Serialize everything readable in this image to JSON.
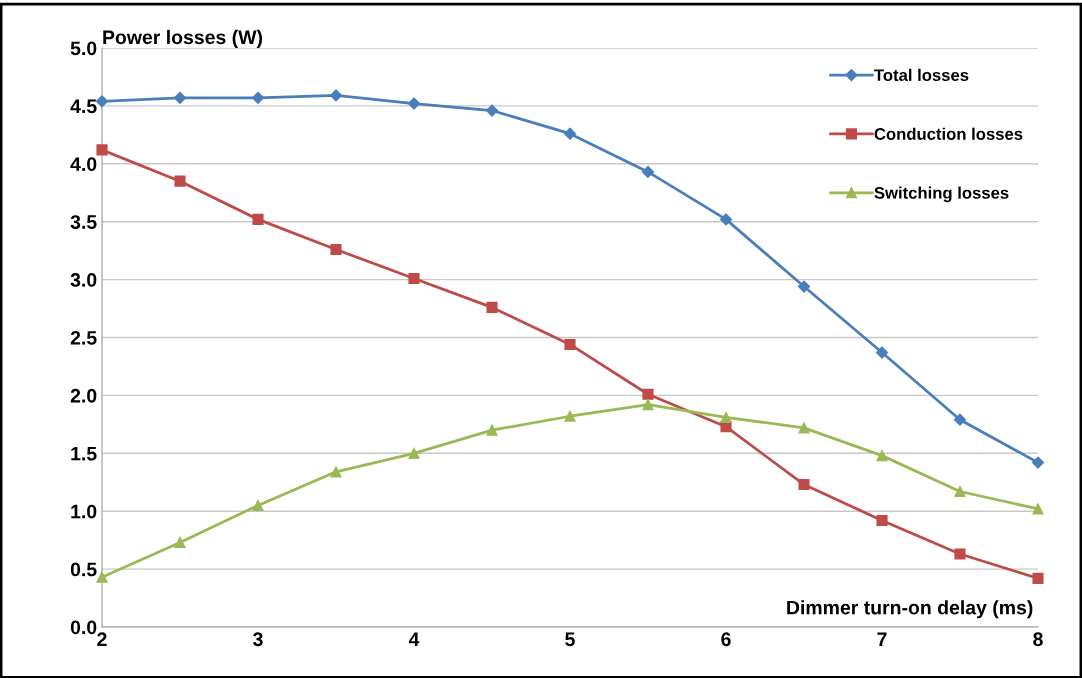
{
  "chart_data": {
    "type": "line",
    "xlabel": "Dimmer turn-on delay (ms)",
    "ylabel": "Power losses (W)",
    "x": [
      2,
      2.5,
      3,
      3.5,
      4,
      4.5,
      5,
      5.5,
      6,
      6.5,
      7,
      7.5,
      8
    ],
    "series": [
      {
        "name": "Total losses",
        "color": "#4a7ebb",
        "marker": "diamond",
        "values": [
          4.54,
          4.57,
          4.57,
          4.59,
          4.52,
          4.46,
          4.26,
          3.93,
          3.52,
          2.94,
          2.37,
          1.79,
          1.42
        ]
      },
      {
        "name": "Conduction losses",
        "color": "#be4b48",
        "marker": "square",
        "values": [
          4.12,
          3.85,
          3.52,
          3.26,
          3.01,
          2.76,
          2.44,
          2.01,
          1.73,
          1.23,
          0.92,
          0.63,
          0.42
        ]
      },
      {
        "name": "Switching losses",
        "color": "#98b954",
        "marker": "triangle",
        "values": [
          0.43,
          0.73,
          1.05,
          1.34,
          1.5,
          1.7,
          1.82,
          1.92,
          1.81,
          1.72,
          1.48,
          1.17,
          1.02
        ]
      }
    ],
    "xlim": [
      2,
      8
    ],
    "xticks": [
      2,
      3,
      4,
      5,
      6,
      7,
      8
    ],
    "ylim": [
      0,
      5
    ],
    "yticks": [
      {
        "value": 0,
        "label": "0.0"
      },
      {
        "value": 0.5,
        "label": "0.5"
      },
      {
        "value": 1,
        "label": "1.0"
      },
      {
        "value": 1.5,
        "label": "1.5"
      },
      {
        "value": 2,
        "label": "2.0"
      },
      {
        "value": 2.5,
        "label": "2.5"
      },
      {
        "value": 3,
        "label": "3.0"
      },
      {
        "value": 3.5,
        "label": "3.5"
      },
      {
        "value": 4,
        "label": "4.0"
      },
      {
        "value": 4.5,
        "label": "4.5"
      },
      {
        "value": 5,
        "label": "5.0"
      }
    ],
    "grid": "y",
    "legend": "top right"
  }
}
